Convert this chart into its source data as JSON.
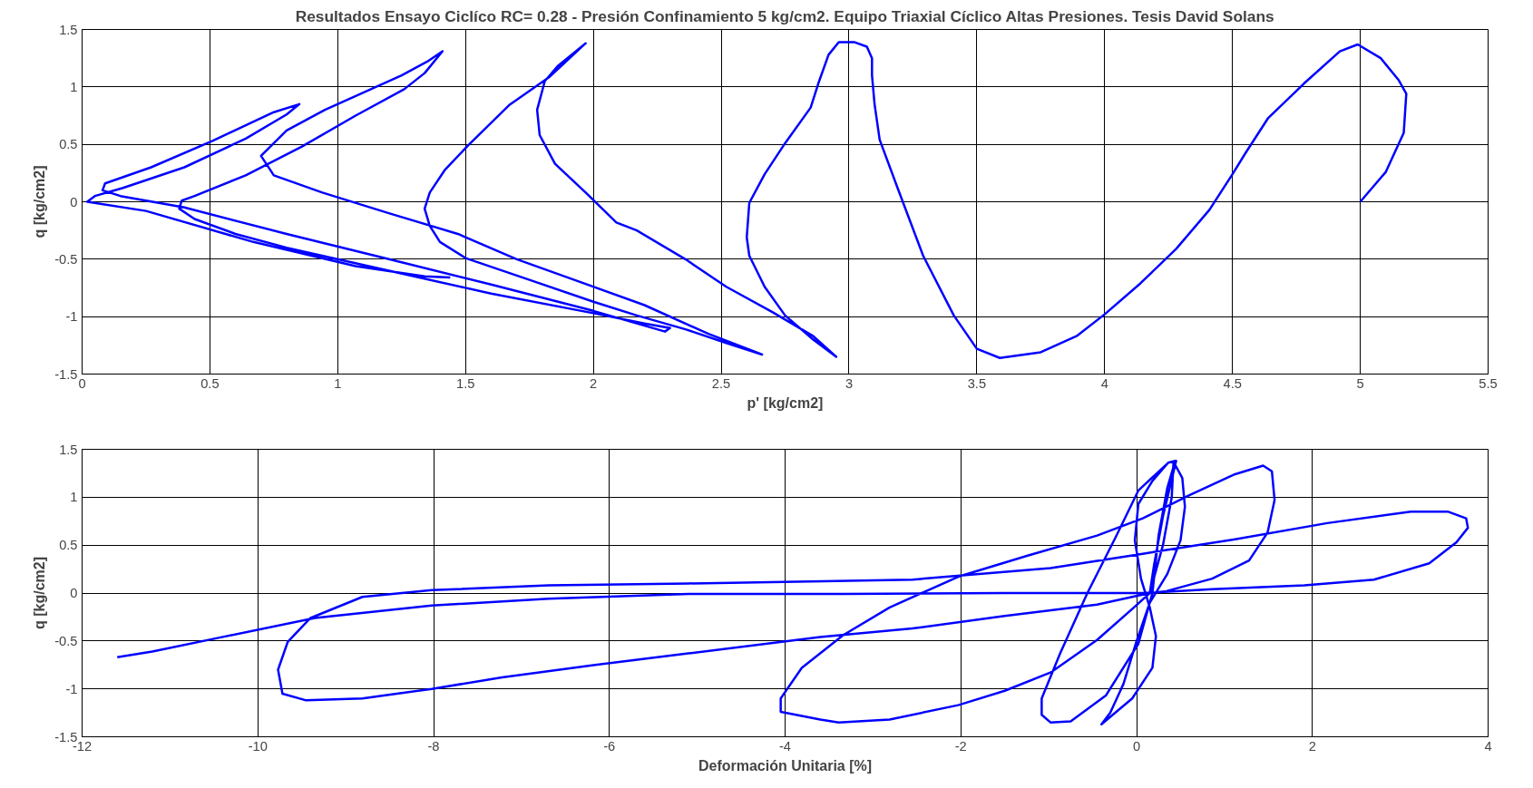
{
  "chart_data": [
    {
      "type": "line",
      "title": "Resultados Ensayo Ciclíco RC= 0.28 - Presión Confinamiento 5 kg/cm2. Equipo Triaxial Cíclico Altas Presiones. Tesis David Solans",
      "xlabel": "p' [kg/cm2]",
      "ylabel": "q [kg/cm2]",
      "xlim": [
        0,
        5.5
      ],
      "xticks": [
        0,
        0.5,
        1,
        1.5,
        2,
        2.5,
        3,
        3.5,
        4,
        4.5,
        5,
        5.5
      ],
      "ylim": [
        -1.5,
        1.5
      ],
      "yticks": [
        -1.5,
        -1,
        -0.5,
        0,
        0.5,
        1,
        1.5
      ],
      "grid": true,
      "marker": "none",
      "line_style": "solid",
      "series": [
        {
          "color": "#0000ff",
          "x": [
            5,
            5.1,
            5.17,
            5.18,
            5.15,
            5.08,
            4.99,
            4.92,
            4.78,
            4.64,
            4.55,
            4.5,
            4.41,
            4.28,
            4.14,
            4.0,
            3.89,
            3.75,
            3.59,
            3.5,
            3.41,
            3.29,
            3.19,
            3.12,
            3.1,
            3.09,
            3.09,
            3.07,
            3.02,
            2.96,
            2.92,
            2.88,
            2.85,
            2.75,
            2.67,
            2.61,
            2.6,
            2.61,
            2.67,
            2.75,
            2.86,
            2.95,
            2.86,
            2.7,
            2.52,
            2.36,
            2.17,
            2.09,
            1.97,
            1.85,
            1.79,
            1.78,
            1.81,
            1.86,
            1.97,
            1.83,
            1.67,
            1.51,
            1.42,
            1.36,
            1.34,
            1.36,
            1.4,
            1.5,
            1.75,
            2.0,
            2.17,
            2.36,
            2.52,
            2.66,
            2.45,
            2.2,
            1.95,
            1.7,
            1.47,
            1.2,
            0.94,
            0.75,
            0.7,
            0.8,
            0.95,
            1.1,
            1.25,
            1.35,
            1.41,
            1.34,
            1.26,
            1.07,
            0.86,
            0.64,
            0.44,
            0.39,
            0.38,
            0.44,
            0.6,
            0.8,
            1.2,
            1.6,
            2.0,
            2.2,
            2.3,
            2.28,
            2.0,
            1.6,
            1.2,
            0.8,
            0.4,
            0.15,
            0.08,
            0.09,
            0.27,
            0.51,
            0.75,
            0.85,
            0.8,
            0.64,
            0.4,
            0.16,
            0.05,
            0.02,
            0.25,
            0.67,
            1.07,
            1.34,
            1.44
          ],
          "values": [
            0,
            0.26,
            0.6,
            0.94,
            1.06,
            1.25,
            1.37,
            1.31,
            1.03,
            0.73,
            0.42,
            0.24,
            -0.07,
            -0.41,
            -0.71,
            -0.98,
            -1.17,
            -1.31,
            -1.36,
            -1.28,
            -0.99,
            -0.47,
            0.12,
            0.54,
            0.85,
            1.1,
            1.25,
            1.35,
            1.39,
            1.39,
            1.28,
            1.03,
            0.82,
            0.51,
            0.24,
            -0.01,
            -0.31,
            -0.47,
            -0.74,
            -0.99,
            -1.2,
            -1.35,
            -1.17,
            -0.96,
            -0.74,
            -0.5,
            -0.25,
            -0.18,
            0.08,
            0.33,
            0.58,
            0.8,
            1.05,
            1.18,
            1.38,
            1.09,
            0.84,
            0.49,
            0.28,
            0.08,
            -0.06,
            -0.21,
            -0.35,
            -0.49,
            -0.68,
            -0.87,
            -0.99,
            -1.11,
            -1.23,
            -1.33,
            -1.15,
            -0.9,
            -0.7,
            -0.5,
            -0.28,
            -0.1,
            0.08,
            0.23,
            0.4,
            0.62,
            0.8,
            0.95,
            1.1,
            1.22,
            1.31,
            1.12,
            0.98,
            0.75,
            0.48,
            0.23,
            0.05,
            0.01,
            -0.06,
            -0.15,
            -0.28,
            -0.4,
            -0.6,
            -0.8,
            -0.97,
            -1.06,
            -1.1,
            -1.13,
            -0.95,
            -0.72,
            -0.5,
            -0.28,
            -0.05,
            0.05,
            0.1,
            0.16,
            0.3,
            0.53,
            0.78,
            0.85,
            0.76,
            0.55,
            0.3,
            0.12,
            0.05,
            0,
            -0.08,
            -0.35,
            -0.56,
            -0.65,
            -0.66
          ]
        }
      ]
    },
    {
      "type": "line",
      "xlabel": "Deformación Unitaria [%]",
      "ylabel": "q [kg/cm2]",
      "xlim": [
        -12,
        4
      ],
      "xticks": [
        -12,
        -10,
        -8,
        -6,
        -4,
        -2,
        0,
        2,
        4
      ],
      "ylim": [
        -1.5,
        1.5
      ],
      "yticks": [
        -1.5,
        -1,
        -0.5,
        0,
        0.5,
        1,
        1.5
      ],
      "grid": true,
      "marker": "none",
      "line_style": "solid",
      "series": [
        {
          "color": "#0000ff",
          "x": [
            0.15,
            0.3,
            0.4,
            0.42,
            0.52,
            0.55,
            0.5,
            0.35,
            0.15,
            0.0,
            -0.15,
            -0.3,
            -0.4,
            -0.05,
            0.18,
            0.22,
            0.15,
            0.05,
            -0.02,
            0.02,
            0.18,
            0.36,
            0.44,
            0.35,
            0.25,
            0.18,
            0.02,
            -0.35,
            -0.75,
            -0.98,
            -1.08,
            -1.08,
            -0.87,
            -0.56,
            -0.24,
            0.02,
            0.36,
            0.45,
            0.3,
            0.2,
            0.15,
            -0.03,
            -0.45,
            -0.98,
            -1.5,
            -2.03,
            -2.81,
            -3.39,
            -3.6,
            -4.05,
            -4.05,
            -3.81,
            -3.34,
            -2.81,
            -2.03,
            -1.24,
            -0.45,
            0.07,
            0.6,
            1.12,
            1.44,
            1.54,
            1.57,
            1.49,
            1.28,
            0.86,
            0.34,
            0.15,
            -0.45,
            -1.5,
            -2.55,
            -3.6,
            -5.1,
            -6.16,
            -7.22,
            -8.02,
            -8.81,
            -9.45,
            -9.72,
            -9.77,
            -9.66,
            -9.4,
            -8.81,
            -8.02,
            -6.69,
            -5.1,
            -3.72,
            -2.55,
            -0.98,
            0.07,
            1.12,
            2.17,
            3.12,
            3.54,
            3.75,
            3.77,
            3.64,
            3.33,
            2.7,
            1.91,
            0.86,
            0.07,
            -1.5,
            -3.34,
            -5.1,
            -6.69,
            -8.02,
            -9.35,
            -10.41,
            -11.2,
            -11.6
          ],
          "values": [
            0,
            0.5,
            1.0,
            1.37,
            1.2,
            0.9,
            0.55,
            0.2,
            -0.1,
            -0.5,
            -0.95,
            -1.25,
            -1.37,
            -1.1,
            -0.78,
            -0.45,
            -0.15,
            0.15,
            0.55,
            0.93,
            1.17,
            1.36,
            1.38,
            1.1,
            0.6,
            0,
            -0.53,
            -1.07,
            -1.34,
            -1.35,
            -1.27,
            -1.1,
            -0.63,
            0.0,
            0.58,
            1.07,
            1.36,
            1.38,
            0.8,
            0.3,
            0,
            -0.15,
            -0.49,
            -0.83,
            -1.02,
            -1.17,
            -1.32,
            -1.35,
            -1.32,
            -1.24,
            -1.1,
            -0.78,
            -0.44,
            -0.15,
            0.17,
            0.39,
            0.6,
            0.78,
            1.02,
            1.24,
            1.33,
            1.27,
            0.97,
            0.63,
            0.34,
            0.15,
            0.02,
            0,
            -0.12,
            -0.24,
            -0.37,
            -0.46,
            -0.63,
            -0.75,
            -0.88,
            -1.0,
            -1.1,
            -1.12,
            -1.05,
            -0.8,
            -0.51,
            -0.26,
            -0.04,
            0.03,
            0.08,
            0.1,
            0.12,
            0.14,
            0.26,
            0.41,
            0.56,
            0.73,
            0.85,
            0.85,
            0.78,
            0.68,
            0.53,
            0.31,
            0.14,
            0.08,
            0.04,
            0.0,
            0,
            -0.01,
            -0.01,
            -0.06,
            -0.13,
            -0.26,
            -0.46,
            -0.61,
            -0.67
          ]
        }
      ]
    }
  ]
}
